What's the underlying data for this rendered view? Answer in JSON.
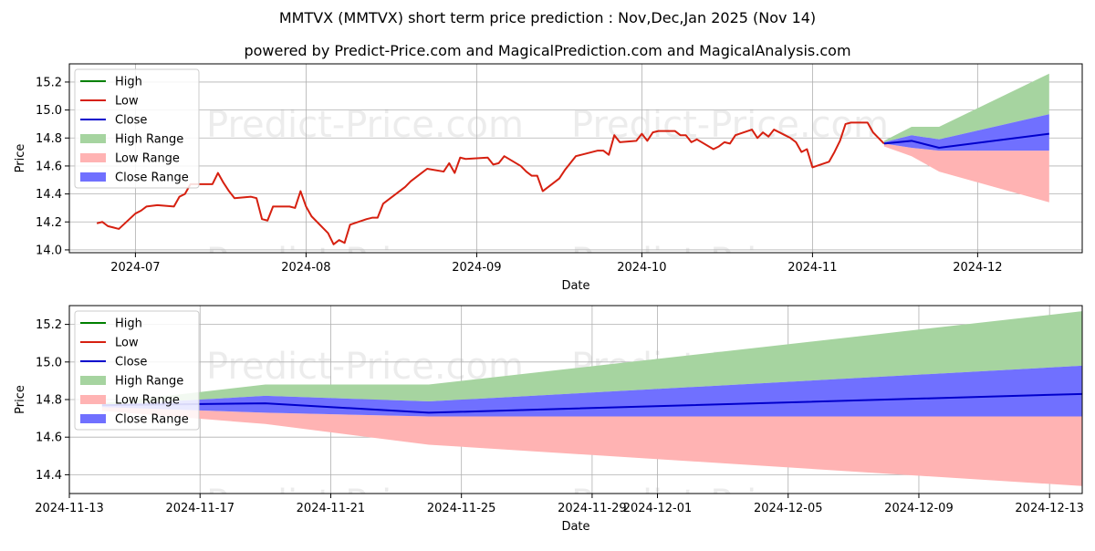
{
  "title": "MMTVX (MMTVX) short term price prediction : Nov,Dec,Jan 2025 (Nov 14)",
  "subtitle": "powered by Predict-Price.com and MagicalPrediction.com and MagicalAnalysis.com",
  "watermark": "Predict-Price.com",
  "colors": {
    "high": "#008000",
    "low": "#d62010",
    "close": "#0000cc",
    "high_range": "#a6d4a0",
    "low_range": "#ffb3b3",
    "close_range": "#7070ff",
    "grid": "#b0b0b0"
  },
  "legend": {
    "placement": "top-left",
    "items": [
      "High",
      "Low",
      "Close",
      "High Range",
      "Low Range",
      "Close Range"
    ]
  },
  "chart_data": [
    {
      "type": "line",
      "xlabel": "Date",
      "ylabel": "Price",
      "grid": true,
      "xlim": [
        "2024-06-19",
        "2024-12-20"
      ],
      "ylim": [
        13.98,
        15.33
      ],
      "x_ticks": [
        "2024-07-01",
        "2024-08-01",
        "2024-09-01",
        "2024-10-01",
        "2024-11-01",
        "2024-12-01"
      ],
      "x_tick_labels": [
        "2024-07",
        "2024-08",
        "2024-09",
        "2024-10",
        "2024-11",
        "2024-12"
      ],
      "y_ticks": [
        14.0,
        14.2,
        14.4,
        14.6,
        14.8,
        15.0,
        15.2
      ],
      "y_tick_labels": [
        "14.0",
        "14.2",
        "14.4",
        "14.6",
        "14.8",
        "15.0",
        "15.2"
      ],
      "history": {
        "x": [
          "2024-06-24",
          "2024-06-25",
          "2024-06-26",
          "2024-06-27",
          "2024-06-28",
          "2024-07-01",
          "2024-07-02",
          "2024-07-03",
          "2024-07-05",
          "2024-07-08",
          "2024-07-09",
          "2024-07-10",
          "2024-07-11",
          "2024-07-12",
          "2024-07-15",
          "2024-07-16",
          "2024-07-17",
          "2024-07-18",
          "2024-07-19",
          "2024-07-22",
          "2024-07-23",
          "2024-07-24",
          "2024-07-25",
          "2024-07-26",
          "2024-07-29",
          "2024-07-30",
          "2024-07-31",
          "2024-08-01",
          "2024-08-02",
          "2024-08-05",
          "2024-08-06",
          "2024-08-07",
          "2024-08-08",
          "2024-08-09",
          "2024-08-12",
          "2024-08-13",
          "2024-08-14",
          "2024-08-15",
          "2024-08-16",
          "2024-08-19",
          "2024-08-20",
          "2024-08-21",
          "2024-08-22",
          "2024-08-23",
          "2024-08-26",
          "2024-08-27",
          "2024-08-28",
          "2024-08-29",
          "2024-08-30",
          "2024-09-03",
          "2024-09-04",
          "2024-09-05",
          "2024-09-06",
          "2024-09-09",
          "2024-09-10",
          "2024-09-11",
          "2024-09-12",
          "2024-09-13",
          "2024-09-16",
          "2024-09-17",
          "2024-09-18",
          "2024-09-19",
          "2024-09-20",
          "2024-09-23",
          "2024-09-24",
          "2024-09-25",
          "2024-09-26",
          "2024-09-27",
          "2024-09-30",
          "2024-10-01",
          "2024-10-02",
          "2024-10-03",
          "2024-10-04",
          "2024-10-07",
          "2024-10-08",
          "2024-10-09",
          "2024-10-10",
          "2024-10-11",
          "2024-10-14",
          "2024-10-15",
          "2024-10-16",
          "2024-10-17",
          "2024-10-18",
          "2024-10-21",
          "2024-10-22",
          "2024-10-23",
          "2024-10-24",
          "2024-10-25",
          "2024-10-28",
          "2024-10-29",
          "2024-10-30",
          "2024-10-31",
          "2024-11-01",
          "2024-11-04",
          "2024-11-05",
          "2024-11-06",
          "2024-11-07",
          "2024-11-08",
          "2024-11-11",
          "2024-11-12",
          "2024-11-13",
          "2024-11-14"
        ],
        "low": [
          14.19,
          14.2,
          14.17,
          14.16,
          14.15,
          14.26,
          14.28,
          14.31,
          14.32,
          14.31,
          14.38,
          14.4,
          14.47,
          14.47,
          14.47,
          14.55,
          14.48,
          14.42,
          14.37,
          14.38,
          14.37,
          14.22,
          14.21,
          14.31,
          14.31,
          14.3,
          14.42,
          14.31,
          14.24,
          14.12,
          14.04,
          14.07,
          14.05,
          14.18,
          14.22,
          14.23,
          14.23,
          14.33,
          14.36,
          14.45,
          14.49,
          14.52,
          14.55,
          14.58,
          14.56,
          14.62,
          14.55,
          14.66,
          14.65,
          14.66,
          14.61,
          14.62,
          14.67,
          14.6,
          14.56,
          14.53,
          14.53,
          14.42,
          14.51,
          14.57,
          14.62,
          14.67,
          14.68,
          14.71,
          14.71,
          14.68,
          14.82,
          14.77,
          14.78,
          14.83,
          14.78,
          14.84,
          14.85,
          14.85,
          14.82,
          14.82,
          14.77,
          14.79,
          14.72,
          14.74,
          14.77,
          14.76,
          14.82,
          14.86,
          14.8,
          14.84,
          14.81,
          14.86,
          14.8,
          14.77,
          14.7,
          14.72,
          14.59,
          14.63,
          14.7,
          14.78,
          14.9,
          14.91,
          14.91,
          14.84,
          14.8,
          14.76
        ]
      },
      "forecast": {
        "x": [
          "2024-11-14",
          "2024-11-19",
          "2024-11-24",
          "2024-12-14"
        ],
        "close": [
          14.76,
          14.78,
          14.73,
          14.83
        ],
        "high_range_upper": [
          14.78,
          14.88,
          14.88,
          15.26
        ],
        "close_range_upper": [
          14.77,
          14.82,
          14.79,
          14.97
        ],
        "close_range_lower": [
          14.76,
          14.73,
          14.71,
          14.71
        ],
        "low_range_lower": [
          14.74,
          14.67,
          14.56,
          14.34
        ]
      }
    },
    {
      "type": "line",
      "xlabel": "Date",
      "ylabel": "Price",
      "grid": true,
      "xlim": [
        "2024-11-13",
        "2024-12-14"
      ],
      "ylim": [
        14.3,
        15.3
      ],
      "x_ticks": [
        "2024-11-13",
        "2024-11-17",
        "2024-11-21",
        "2024-11-25",
        "2024-11-29",
        "2024-12-01",
        "2024-12-05",
        "2024-12-09",
        "2024-12-13"
      ],
      "x_tick_labels": [
        "2024-11-13",
        "2024-11-17",
        "2024-11-21",
        "2024-11-25",
        "2024-11-29",
        "2024-12-01",
        "2024-12-05",
        "2024-12-09",
        "2024-12-13"
      ],
      "y_ticks": [
        14.4,
        14.6,
        14.8,
        15.0,
        15.2
      ],
      "y_tick_labels": [
        "14.4",
        "14.6",
        "14.8",
        "15.0",
        "15.2"
      ],
      "forecast": {
        "x": [
          "2024-11-14",
          "2024-11-19",
          "2024-11-24",
          "2024-12-14"
        ],
        "close": [
          14.77,
          14.78,
          14.73,
          14.83
        ],
        "high_range_upper": [
          14.78,
          14.88,
          14.88,
          15.27
        ],
        "close_range_upper": [
          14.77,
          14.82,
          14.79,
          14.98
        ],
        "close_range_lower": [
          14.76,
          14.73,
          14.71,
          14.71
        ],
        "low_range_lower": [
          14.74,
          14.67,
          14.56,
          14.34
        ]
      }
    }
  ]
}
